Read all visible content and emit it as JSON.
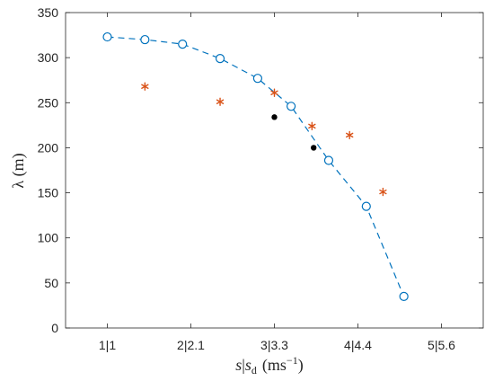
{
  "chart_data": {
    "type": "scatter",
    "x_tick_labels": [
      "1|1",
      "2|2.1",
      "3|3.3",
      "4|4.4",
      "5|5.6"
    ],
    "y_ticks": [
      0,
      50,
      100,
      150,
      200,
      250,
      300,
      350
    ],
    "ylim": [
      0,
      350
    ],
    "xlim": [
      0.5,
      5.5
    ],
    "xlabel": {
      "s": "s",
      "sep": "|",
      "sd": "s",
      "sd_sub": "d",
      "unit_open": "(ms",
      "unit_sup": "−1",
      "unit_close": ")"
    },
    "ylabel": "λ (m)",
    "grid": false,
    "series": [
      {
        "marker": "circle-open",
        "line": "dashed",
        "color": "#0072BD",
        "points": [
          [
            1.0,
            323
          ],
          [
            1.45,
            320
          ],
          [
            1.9,
            315
          ],
          [
            2.35,
            299
          ],
          [
            2.8,
            277
          ],
          [
            3.2,
            246
          ],
          [
            3.65,
            186
          ],
          [
            4.1,
            135
          ],
          [
            4.55,
            35
          ]
        ]
      },
      {
        "marker": "asterisk",
        "color": "#D95319",
        "points": [
          [
            1.45,
            268
          ],
          [
            2.35,
            251
          ],
          [
            3.0,
            261
          ],
          [
            3.45,
            224
          ],
          [
            3.9,
            214
          ],
          [
            4.3,
            151
          ]
        ]
      },
      {
        "marker": "dot",
        "color": "#000000",
        "points": [
          [
            3.0,
            234
          ],
          [
            3.47,
            200
          ]
        ]
      }
    ]
  }
}
